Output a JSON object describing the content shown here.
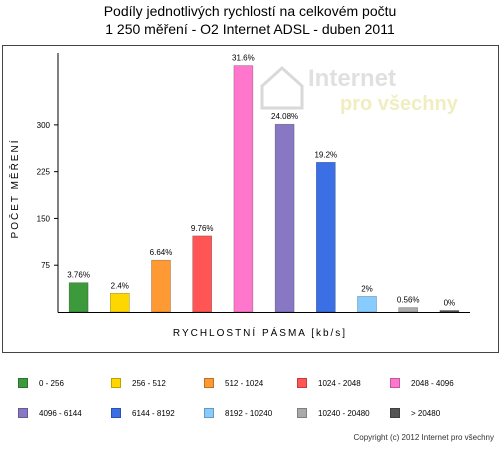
{
  "title": {
    "line1": "Podíly jednotlivých rychlostí na celkovém počtu",
    "line2": "1 250 měření - O2 Internet ADSL  - duben 2011"
  },
  "watermark": {
    "line1": "Internet",
    "line2": "pro všechny"
  },
  "copyright": "Copyright (c) 2012 Internet pro všechny",
  "chart_data": {
    "type": "bar",
    "xlabel": "RYCHLOSTNÍ PÁSMA [kb/s]",
    "ylabel": "POČET MĚŘENÍ",
    "ylim": [
      0,
      412
    ],
    "yticks": [
      75,
      150,
      225,
      300
    ],
    "grid": false,
    "legend_position": "bottom",
    "categories": [
      "0 - 256",
      "256 - 512",
      "512 - 1024",
      "1024 - 2048",
      "2048 - 4096",
      "4096 - 6144",
      "6144 - 8192",
      "8192 - 10240",
      "10240 - 20480",
      "> 20480"
    ],
    "values": [
      47,
      30,
      83,
      122,
      395,
      301,
      240,
      25,
      7,
      0
    ],
    "labels": [
      "3.76%",
      "2.4%",
      "6.64%",
      "9.76%",
      "31.6%",
      "24.08%",
      "19.2%",
      "2%",
      "0.56%",
      "0%"
    ],
    "colors": [
      "#3c9a3c",
      "#ffd700",
      "#ff9933",
      "#ff5555",
      "#ff77cc",
      "#8878c3",
      "#3b6fe6",
      "#88ccff",
      "#aaaaaa",
      "#555555"
    ]
  }
}
